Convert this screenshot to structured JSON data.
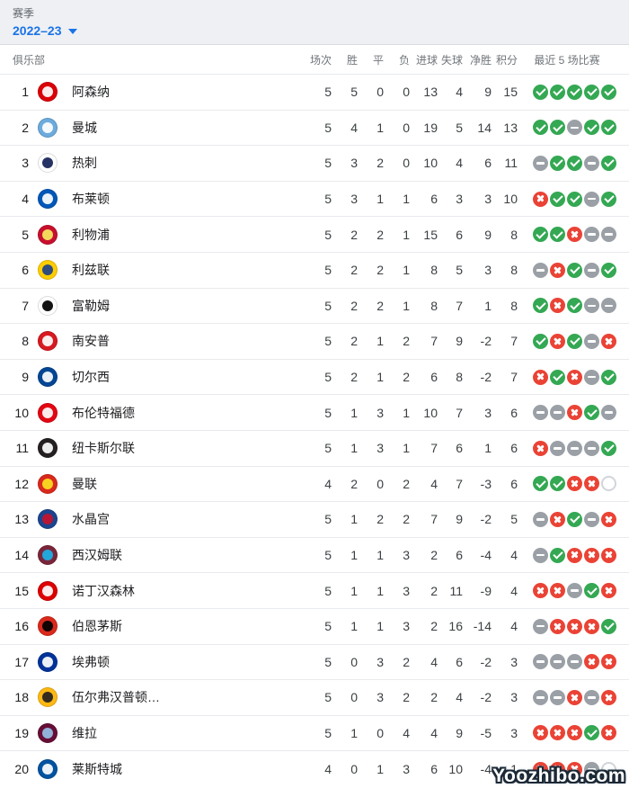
{
  "season": {
    "label": "赛季",
    "value": "2022–23"
  },
  "table": {
    "columns": {
      "club": "俱乐部",
      "played": "场次",
      "won": "胜",
      "drawn": "平",
      "lost": "负",
      "gf": "进球",
      "ga": "失球",
      "gd": "净胜",
      "pts": "积分",
      "last5": "最近 5 场比赛"
    },
    "last5_legend": {
      "W": "win",
      "D": "draw",
      "L": "loss",
      "N": "not-played"
    },
    "rows": [
      {
        "rank": 1,
        "name": "阿森纳",
        "logo": [
          "#db0007",
          "#ffffff"
        ],
        "stats": [
          5,
          5,
          0,
          0,
          13,
          4,
          9,
          15
        ],
        "last5": [
          "W",
          "W",
          "W",
          "W",
          "W"
        ]
      },
      {
        "rank": 2,
        "name": "曼城",
        "logo": [
          "#6cabdd",
          "#ffffff"
        ],
        "stats": [
          5,
          4,
          1,
          0,
          19,
          5,
          14,
          13
        ],
        "last5": [
          "W",
          "W",
          "D",
          "W",
          "W"
        ]
      },
      {
        "rank": 3,
        "name": "热刺",
        "logo": [
          "#ffffff",
          "#132257"
        ],
        "stats": [
          5,
          3,
          2,
          0,
          10,
          4,
          6,
          11
        ],
        "last5": [
          "D",
          "W",
          "W",
          "D",
          "W"
        ]
      },
      {
        "rank": 4,
        "name": "布莱顿",
        "logo": [
          "#0057b8",
          "#ffffff"
        ],
        "stats": [
          5,
          3,
          1,
          1,
          6,
          3,
          3,
          10
        ],
        "last5": [
          "L",
          "W",
          "W",
          "D",
          "W"
        ]
      },
      {
        "rank": 5,
        "name": "利物浦",
        "logo": [
          "#c8102e",
          "#f6eb61"
        ],
        "stats": [
          5,
          2,
          2,
          1,
          15,
          6,
          9,
          8
        ],
        "last5": [
          "W",
          "W",
          "L",
          "D",
          "D"
        ]
      },
      {
        "rank": 6,
        "name": "利兹联",
        "logo": [
          "#ffcd00",
          "#1d428a"
        ],
        "stats": [
          5,
          2,
          2,
          1,
          8,
          5,
          3,
          8
        ],
        "last5": [
          "D",
          "L",
          "W",
          "D",
          "W"
        ]
      },
      {
        "rank": 7,
        "name": "富勒姆",
        "logo": [
          "#ffffff",
          "#000000"
        ],
        "stats": [
          5,
          2,
          2,
          1,
          8,
          7,
          1,
          8
        ],
        "last5": [
          "W",
          "L",
          "W",
          "D",
          "D"
        ]
      },
      {
        "rank": 8,
        "name": "南安普",
        "logo": [
          "#d71920",
          "#ffffff"
        ],
        "stats": [
          5,
          2,
          1,
          2,
          7,
          9,
          -2,
          7
        ],
        "last5": [
          "W",
          "L",
          "W",
          "D",
          "L"
        ]
      },
      {
        "rank": 9,
        "name": "切尔西",
        "logo": [
          "#034694",
          "#ffffff"
        ],
        "stats": [
          5,
          2,
          1,
          2,
          6,
          8,
          -2,
          7
        ],
        "last5": [
          "L",
          "W",
          "L",
          "D",
          "W"
        ]
      },
      {
        "rank": 10,
        "name": "布伦特福德",
        "logo": [
          "#e30613",
          "#ffffff"
        ],
        "stats": [
          5,
          1,
          3,
          1,
          10,
          7,
          3,
          6
        ],
        "last5": [
          "D",
          "D",
          "L",
          "W",
          "D"
        ]
      },
      {
        "rank": 11,
        "name": "纽卡斯尔联",
        "logo": [
          "#241f20",
          "#ffffff"
        ],
        "stats": [
          5,
          1,
          3,
          1,
          7,
          6,
          1,
          6
        ],
        "last5": [
          "L",
          "D",
          "D",
          "D",
          "W"
        ]
      },
      {
        "rank": 12,
        "name": "曼联",
        "logo": [
          "#da291c",
          "#fbe122"
        ],
        "stats": [
          4,
          2,
          0,
          2,
          4,
          7,
          -3,
          6
        ],
        "last5": [
          "W",
          "W",
          "L",
          "L",
          "N"
        ]
      },
      {
        "rank": 13,
        "name": "水晶宫",
        "logo": [
          "#1b458f",
          "#c4122e"
        ],
        "stats": [
          5,
          1,
          2,
          2,
          7,
          9,
          -2,
          5
        ],
        "last5": [
          "D",
          "L",
          "W",
          "D",
          "L"
        ]
      },
      {
        "rank": 14,
        "name": "西汉姆联",
        "logo": [
          "#7a263a",
          "#1bb1e7"
        ],
        "stats": [
          5,
          1,
          1,
          3,
          2,
          6,
          -4,
          4
        ],
        "last5": [
          "D",
          "W",
          "L",
          "L",
          "L"
        ]
      },
      {
        "rank": 15,
        "name": "诺丁汉森林",
        "logo": [
          "#dd0000",
          "#ffffff"
        ],
        "stats": [
          5,
          1,
          1,
          3,
          2,
          11,
          -9,
          4
        ],
        "last5": [
          "L",
          "L",
          "D",
          "W",
          "L"
        ]
      },
      {
        "rank": 16,
        "name": "伯恩茅斯",
        "logo": [
          "#da291c",
          "#000000"
        ],
        "stats": [
          5,
          1,
          1,
          3,
          2,
          16,
          -14,
          4
        ],
        "last5": [
          "D",
          "L",
          "L",
          "L",
          "W"
        ]
      },
      {
        "rank": 17,
        "name": "埃弗顿",
        "logo": [
          "#003399",
          "#ffffff"
        ],
        "stats": [
          5,
          0,
          3,
          2,
          4,
          6,
          -2,
          3
        ],
        "last5": [
          "D",
          "D",
          "D",
          "L",
          "L"
        ]
      },
      {
        "rank": 18,
        "name": "伍尔弗汉普顿…",
        "logo": [
          "#fdb913",
          "#231f20"
        ],
        "stats": [
          5,
          0,
          3,
          2,
          2,
          4,
          -2,
          3
        ],
        "last5": [
          "D",
          "D",
          "L",
          "D",
          "L"
        ]
      },
      {
        "rank": 19,
        "name": "维拉",
        "logo": [
          "#670e36",
          "#95bfe5"
        ],
        "stats": [
          5,
          1,
          0,
          4,
          4,
          9,
          -5,
          3
        ],
        "last5": [
          "L",
          "L",
          "L",
          "W",
          "L"
        ]
      },
      {
        "rank": 20,
        "name": "莱斯特城",
        "logo": [
          "#0053a0",
          "#ffffff"
        ],
        "stats": [
          4,
          0,
          1,
          3,
          6,
          10,
          -4,
          1
        ],
        "last5": [
          "L",
          "L",
          "L",
          "D",
          "N"
        ]
      }
    ]
  },
  "colors": {
    "win_green": "#34a853",
    "draw_gray": "#9aa0a6",
    "loss_red": "#ea4335",
    "link_blue": "#1a73e8"
  },
  "watermark": "Yoozhibo.com"
}
